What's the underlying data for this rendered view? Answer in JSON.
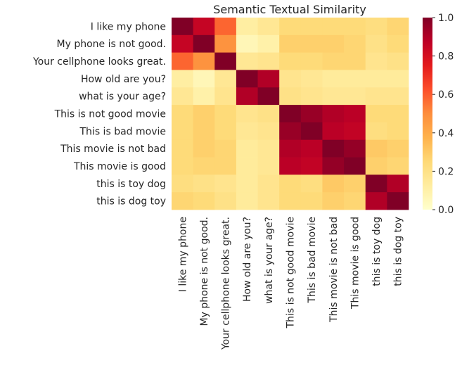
{
  "chart_data": {
    "type": "heatmap",
    "title": "Semantic Textual Similarity",
    "xlabel": "",
    "ylabel": "",
    "row_labels": [
      "I like my phone",
      "My phone is not good.",
      "Your cellphone looks great.",
      "How old are you?",
      "what is your age?",
      "This is not good movie",
      "This is bad movie",
      "This movie is not bad",
      "This movie is good",
      "this is toy dog",
      "this is dog toy"
    ],
    "col_labels": [
      "I like my phone",
      "My phone is not good.",
      "Your cellphone looks great.",
      "How old are you?",
      "what is your age?",
      "This is not good movie",
      "This is bad movie",
      "This movie is not bad",
      "This movie is good",
      "this is toy dog",
      "this is dog toy"
    ],
    "values": [
      [
        1.0,
        0.85,
        0.58,
        0.12,
        0.16,
        0.24,
        0.24,
        0.24,
        0.24,
        0.22,
        0.26
      ],
      [
        0.85,
        1.0,
        0.48,
        0.06,
        0.1,
        0.28,
        0.28,
        0.28,
        0.26,
        0.2,
        0.24
      ],
      [
        0.58,
        0.48,
        1.0,
        0.16,
        0.18,
        0.24,
        0.24,
        0.26,
        0.26,
        0.18,
        0.2
      ],
      [
        0.12,
        0.06,
        0.16,
        1.0,
        0.9,
        0.18,
        0.16,
        0.14,
        0.14,
        0.14,
        0.14
      ],
      [
        0.16,
        0.1,
        0.18,
        0.9,
        1.0,
        0.2,
        0.18,
        0.16,
        0.16,
        0.18,
        0.18
      ],
      [
        0.24,
        0.28,
        0.24,
        0.18,
        0.2,
        1.0,
        0.95,
        0.9,
        0.88,
        0.24,
        0.24
      ],
      [
        0.24,
        0.28,
        0.24,
        0.16,
        0.18,
        0.95,
        1.0,
        0.88,
        0.86,
        0.22,
        0.24
      ],
      [
        0.24,
        0.28,
        0.26,
        0.14,
        0.16,
        0.9,
        0.88,
        1.0,
        0.96,
        0.3,
        0.28
      ],
      [
        0.24,
        0.26,
        0.26,
        0.14,
        0.16,
        0.88,
        0.86,
        0.96,
        1.0,
        0.28,
        0.26
      ],
      [
        0.22,
        0.2,
        0.18,
        0.14,
        0.18,
        0.24,
        0.22,
        0.3,
        0.28,
        1.0,
        0.9
      ],
      [
        0.26,
        0.24,
        0.2,
        0.14,
        0.18,
        0.24,
        0.24,
        0.28,
        0.26,
        0.9,
        1.0
      ]
    ],
    "colormap": "YlOrRd",
    "vmin": 0.0,
    "vmax": 1.0,
    "colorbar_ticks": [
      "0.0",
      "0.2",
      "0.4",
      "0.6",
      "0.8",
      "1.0"
    ],
    "colorbar_tick_values": [
      0.0,
      0.2,
      0.4,
      0.6,
      0.8,
      1.0
    ],
    "grid": false
  }
}
